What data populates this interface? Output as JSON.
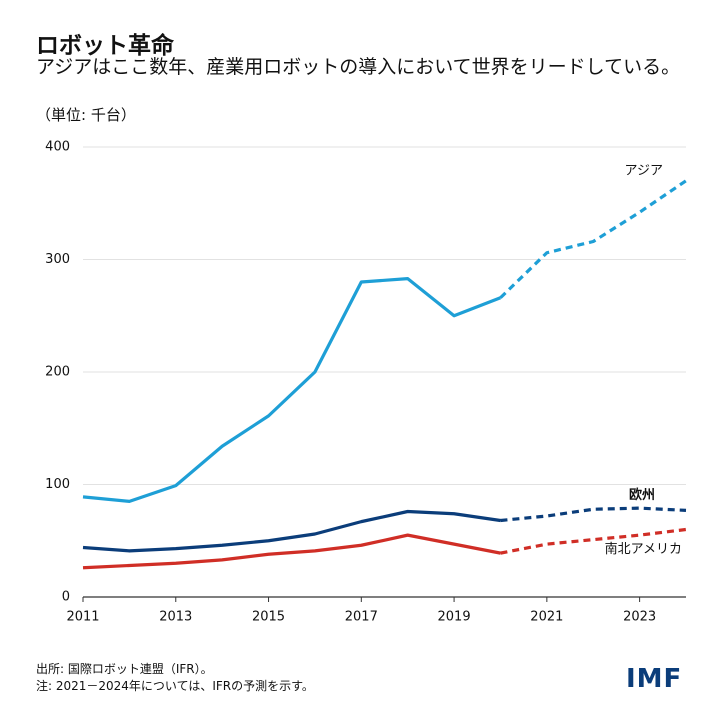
{
  "chart_data": {
    "type": "line",
    "title": "ロボット革命",
    "subtitle": "アジアはここ数年、産業用ロボットの導入において世界をリードしている。",
    "unit_label": "（単位: 千台）",
    "source": "出所: 国際ロボット連盟（IFR）。",
    "note": "注: 2021－2024年については、IFRの予測を示す。",
    "logo": "IMF",
    "x": [
      2011,
      2012,
      2013,
      2014,
      2015,
      2016,
      2017,
      2018,
      2019,
      2020,
      2021,
      2022,
      2023,
      2024
    ],
    "forecast_from_x": 2020,
    "series": [
      {
        "name": "アジア",
        "color": "#1e9fd6",
        "values": [
          89,
          85,
          99,
          134,
          161,
          200,
          280,
          283,
          250,
          266,
          306,
          316,
          342,
          370
        ]
      },
      {
        "name": "欧州",
        "color": "#0b3d7a",
        "values": [
          44,
          41,
          43,
          46,
          50,
          56,
          67,
          76,
          74,
          68,
          72,
          78,
          79,
          77
        ]
      },
      {
        "name": "南北アメリカ",
        "color": "#d02e26",
        "values": [
          26,
          28,
          30,
          33,
          38,
          41,
          46,
          55,
          47,
          39,
          47,
          51,
          55,
          60
        ]
      }
    ],
    "xlim": [
      2011,
      2024
    ],
    "xticks": [
      2011,
      2013,
      2015,
      2017,
      2019,
      2021,
      2023
    ],
    "ylim": [
      0,
      400
    ],
    "yticks": [
      0,
      100,
      200,
      300,
      400
    ],
    "grid": true
  }
}
